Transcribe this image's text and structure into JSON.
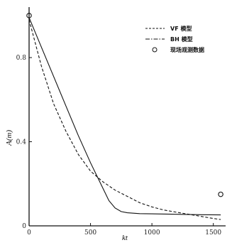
{
  "chart_data": {
    "type": "line",
    "xlabel": "kt",
    "ylabel": "A(m)",
    "xlim": [
      0,
      1600
    ],
    "ylim": [
      0,
      1.04
    ],
    "x_ticks": [
      0,
      500,
      1000,
      1500
    ],
    "x_tick_labels": [
      "0",
      "500",
      "1000",
      "1500"
    ],
    "y_ticks": [
      0,
      0.4,
      0.8
    ],
    "y_tick_labels": [
      "0",
      "0.4",
      "0.8"
    ],
    "legend_position": "top-right",
    "series": [
      {
        "name": "VF 模型",
        "style": "dashed",
        "x": [
          0,
          100,
          200,
          300,
          400,
          500,
          600,
          700,
          800,
          900,
          1000,
          1100,
          1200,
          1300,
          1400,
          1500,
          1560
        ],
        "y": [
          0.98,
          0.76,
          0.58,
          0.45,
          0.34,
          0.26,
          0.21,
          0.17,
          0.14,
          0.11,
          0.09,
          0.075,
          0.065,
          0.055,
          0.045,
          0.035,
          0.03
        ]
      },
      {
        "name": "BH 模型",
        "style": "solid",
        "x": [
          0,
          100,
          200,
          300,
          400,
          500,
          550,
          600,
          650,
          700,
          750,
          800,
          850,
          900,
          1000,
          1200,
          1400,
          1560
        ],
        "y": [
          0.99,
          0.85,
          0.71,
          0.57,
          0.43,
          0.3,
          0.24,
          0.18,
          0.12,
          0.085,
          0.068,
          0.062,
          0.06,
          0.058,
          0.057,
          0.055,
          0.053,
          0.052
        ]
      },
      {
        "name": "现场观测数据",
        "style": "markers",
        "x": [
          0,
          1560
        ],
        "y": [
          1.0,
          0.15
        ]
      }
    ]
  }
}
